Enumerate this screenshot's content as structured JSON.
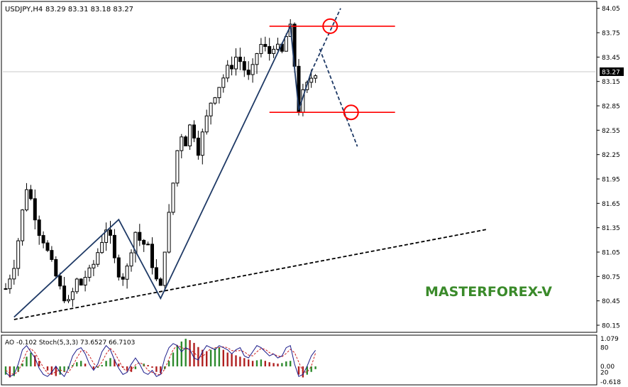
{
  "header": {
    "symbol": "USDJPY,H4",
    "ohlc": "83.29 83.31 83.18 83.27"
  },
  "watermark": "MASTERFOREX-V",
  "colors": {
    "up_candle": "#000000",
    "down_candle": "#000000",
    "zigzag": "#1f3a66",
    "level_lines": "#ff0000",
    "trendline": "#000000",
    "watermark": "#3a8a2a",
    "ao_up": "#2e8b2e",
    "ao_down": "#b02020",
    "stoch_main": "#1a1a8a",
    "stoch_signal": "#cc2222"
  },
  "chart_data": [
    {
      "type": "candlestick",
      "ylim": [
        80.08,
        84.1
      ],
      "price_axis_ticks": [
        "84.05",
        "83.75",
        "83.45",
        "83.15",
        "82.85",
        "82.55",
        "82.25",
        "81.95",
        "81.65",
        "81.35",
        "81.05",
        "80.75",
        "80.45",
        "80.15"
      ],
      "current_price": "83.27",
      "close_trend": [
        80.6,
        80.75,
        80.9,
        81.2,
        81.55,
        81.85,
        81.7,
        81.5,
        81.3,
        81.2,
        81.05,
        80.9,
        80.75,
        80.6,
        80.5,
        80.42,
        80.55,
        80.7,
        80.65,
        80.75,
        80.8,
        80.9,
        81.05,
        81.2,
        81.35,
        81.2,
        80.95,
        80.8,
        80.75,
        80.85,
        81.1,
        81.3,
        81.2,
        81.15,
        81.1,
        80.9,
        80.7,
        80.6,
        81.1,
        81.5,
        81.9,
        82.3,
        82.5,
        82.4,
        82.6,
        82.5,
        82.3,
        82.5,
        82.7,
        82.9,
        83.0,
        83.1,
        83.2,
        83.3,
        83.35,
        83.45,
        83.4,
        83.3,
        83.2,
        83.3,
        83.5,
        83.6,
        83.55,
        83.5,
        83.6,
        83.55,
        83.5,
        83.7,
        83.8,
        83.35,
        82.8,
        83.0,
        83.1,
        83.2,
        83.27
      ],
      "zigzag": [
        {
          "bar": 2,
          "price": 80.25
        },
        {
          "bar": 27,
          "price": 81.45
        },
        {
          "bar": 37,
          "price": 80.48
        },
        {
          "bar": 68,
          "price": 83.83
        },
        {
          "bar": 70,
          "price": 82.8
        },
        {
          "bar": 73,
          "price": 83.27
        }
      ],
      "projection": [
        {
          "bar": 73,
          "price": 83.27
        },
        {
          "bar": 80,
          "price": 84.05
        }
      ],
      "projection_down": [
        {
          "bar": 75,
          "price": 83.55
        },
        {
          "bar": 84,
          "price": 82.35
        }
      ],
      "levels": [
        83.83,
        82.77
      ],
      "level_span_bars": [
        63,
        93
      ],
      "level_marks": [
        {
          "bar": 77.5,
          "price": 83.83
        },
        {
          "bar": 82.5,
          "price": 82.77
        }
      ],
      "trendline": [
        {
          "bar": 2,
          "price": 80.22
        },
        {
          "bar": 115,
          "price": 81.33
        }
      ]
    },
    {
      "type": "oscillator",
      "ylim": [
        -0.618,
        1.079
      ],
      "header": "AO -0.102 Stoch(5,3,3) 73.6527 66.7103",
      "axis_labels": [
        "1.079",
        "80",
        "0.00",
        "20",
        "-0.618"
      ],
      "ao": [
        -0.3,
        -0.4,
        -0.35,
        -0.2,
        0.1,
        0.35,
        0.5,
        0.4,
        0.2,
        0.0,
        -0.15,
        -0.3,
        -0.35,
        -0.3,
        -0.2,
        -0.1,
        0.05,
        0.15,
        0.2,
        0.1,
        0.0,
        -0.1,
        -0.05,
        0.05,
        0.2,
        0.3,
        0.25,
        0.1,
        -0.05,
        -0.15,
        -0.2,
        -0.1,
        0.0,
        0.1,
        0.05,
        -0.05,
        -0.2,
        -0.25,
        -0.1,
        0.2,
        0.5,
        0.75,
        0.9,
        1.0,
        0.95,
        0.85,
        0.7,
        0.6,
        0.55,
        0.6,
        0.65,
        0.7,
        0.6,
        0.5,
        0.45,
        0.4,
        0.35,
        0.3,
        0.25,
        0.2,
        0.22,
        0.25,
        0.2,
        0.15,
        0.12,
        0.1,
        0.12,
        0.18,
        0.2,
        0.0,
        -0.3,
        -0.4,
        -0.3,
        -0.2,
        -0.1
      ],
      "stoch_main": [
        20,
        10,
        15,
        40,
        75,
        85,
        70,
        55,
        30,
        15,
        10,
        20,
        35,
        20,
        10,
        30,
        60,
        75,
        80,
        65,
        40,
        25,
        40,
        70,
        85,
        75,
        50,
        30,
        15,
        20,
        40,
        55,
        40,
        20,
        15,
        25,
        10,
        15,
        55,
        80,
        90,
        85,
        70,
        80,
        75,
        55,
        50,
        70,
        85,
        80,
        75,
        85,
        80,
        75,
        65,
        75,
        80,
        60,
        55,
        70,
        85,
        80,
        70,
        60,
        65,
        55,
        60,
        80,
        85,
        40,
        10,
        15,
        35,
        60,
        73.6527
      ],
      "stoch_signal": [
        25,
        18,
        15,
        22,
        45,
        70,
        78,
        68,
        50,
        32,
        18,
        15,
        22,
        26,
        22,
        20,
        35,
        55,
        72,
        73,
        60,
        42,
        32,
        45,
        65,
        78,
        68,
        50,
        30,
        22,
        26,
        38,
        44,
        38,
        25,
        20,
        16,
        14,
        28,
        52,
        75,
        86,
        80,
        77,
        76,
        68,
        58,
        58,
        68,
        78,
        80,
        80,
        82,
        80,
        73,
        72,
        73,
        70,
        62,
        60,
        70,
        78,
        76,
        68,
        64,
        60,
        58,
        66,
        76,
        68,
        45,
        22,
        20,
        35,
        66.7103
      ]
    }
  ]
}
